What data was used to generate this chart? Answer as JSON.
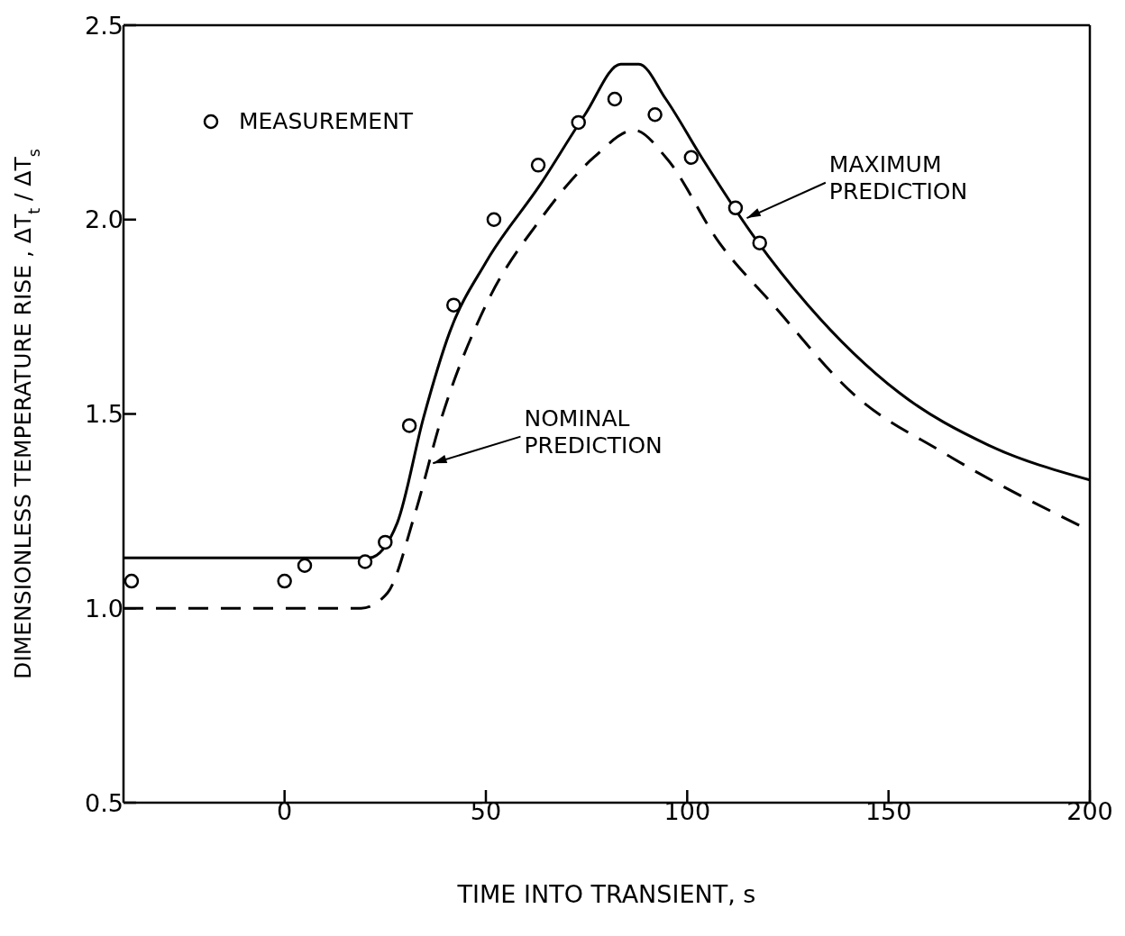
{
  "chart_data": {
    "type": "line",
    "xlabel": "TIME INTO TRANSIENT, s",
    "ylabel": "DIMENSIONLESS TEMPERATURE RISE , ΔT$_{t}$ / ΔT$_{s}$",
    "xlim": [
      -40,
      200
    ],
    "xticks": [
      0,
      50,
      100,
      150,
      200
    ],
    "ylim": [
      0.5,
      2.5
    ],
    "yticks": [
      0.5,
      {
        "value": 1,
        "label": "1.0"
      },
      1.5,
      {
        "value": 2,
        "label": "2.0"
      },
      2.5
    ],
    "grid": false,
    "legend": "top left",
    "series": [
      {
        "type": "scatter",
        "name": "MEASUREMENT",
        "color": "#000000",
        "marker": "circle",
        "x": [
          -38,
          0,
          5,
          20,
          25,
          31,
          42,
          52,
          63,
          73,
          82,
          92,
          101,
          112,
          118
        ],
        "values": [
          1.07,
          1.07,
          1.11,
          1.12,
          1.17,
          1.47,
          1.78,
          2.0,
          2.14,
          2.25,
          2.31,
          2.27,
          2.16,
          2.03,
          1.94
        ]
      },
      {
        "color": "#000000",
        "line_style": "solid",
        "marker": "none",
        "x": [
          -40,
          0,
          21,
          28,
          34.5,
          41,
          50,
          63.5,
          74.6,
          83.5,
          88,
          94.7,
          103.6,
          117,
          130,
          152.6,
          174.8,
          200
        ],
        "values": [
          1.13,
          1.13,
          1.13,
          1.22,
          1.49,
          1.71,
          1.89,
          2.09,
          2.27,
          2.4,
          2.4,
          2.31,
          2.16,
          1.95,
          1.78,
          1.555,
          1.42,
          1.33
        ]
      },
      {
        "color": "#000000",
        "line_style": "dashed",
        "marker": "none",
        "x": [
          -40,
          0,
          19,
          25.6,
          32.3,
          39,
          50,
          63.5,
          76.8,
          86.9,
          94.7,
          108,
          121.4,
          141.4,
          163.7,
          200
        ],
        "values": [
          1.0,
          1.0,
          1.0,
          1.04,
          1.24,
          1.49,
          1.78,
          2.0,
          2.16,
          2.23,
          2.16,
          1.94,
          1.78,
          1.55,
          1.4,
          1.2
        ]
      }
    ],
    "annotations": [
      {
        "text": "MAXIMUM PREDICTION",
        "x": 114,
        "y": 2.0
      },
      {
        "text": "NOMINAL PREDICTION",
        "x": 36,
        "y": 1.37
      }
    ]
  }
}
